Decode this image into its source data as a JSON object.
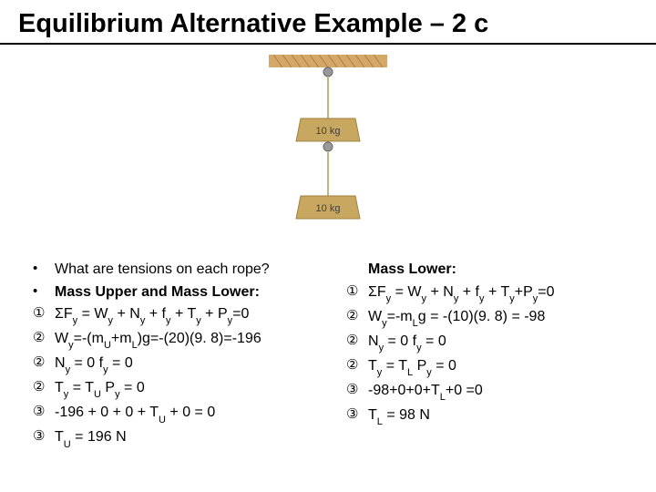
{
  "title": "Equilibrium Alternative Example – 2 c",
  "diagram": {
    "ceiling_color": "#d4a868",
    "ceiling_hatch_color": "#b08040",
    "rope_color": "#c0c090",
    "mass_color": "#c0a060",
    "mass_label": "10 kg",
    "pulley_color": "#888",
    "background": "#ffffff"
  },
  "left_column": [
    {
      "bullet": "•",
      "text": "What are tensions on each rope?",
      "bold": false
    },
    {
      "bullet": "•",
      "text": "Mass Upper and Mass Lower:",
      "bold": true
    },
    {
      "bullet": "①",
      "text": "ΣF_y = W_y + N_y + f_y + T_y + P_y=0",
      "bold": false
    },
    {
      "bullet": "②",
      "text": "W_y=-(m_U+m_L)g=-(20)(9. 8)=-196",
      "bold": false
    },
    {
      "bullet": "②",
      "text": "N_y = 0          f_y = 0",
      "bold": false
    },
    {
      "bullet": "②",
      "text": "T_y = T_U           P_y = 0",
      "bold": false
    },
    {
      "bullet": "③",
      "text": "-196 + 0 + 0 + T_U + 0 = 0",
      "bold": false
    },
    {
      "bullet": "③",
      "text": "T_U = 196 N",
      "bold": false
    }
  ],
  "right_column": [
    {
      "bullet": "",
      "text": "Mass Lower:",
      "bold": true
    },
    {
      "bullet": "①",
      "text": "ΣF_y = W_y + N_y + f_y + T_y+P_y=0",
      "bold": false,
      "wrap": true
    },
    {
      "bullet": "②",
      "text": "W_y=-m_Lg = -(10)(9. 8) = -98",
      "bold": false
    },
    {
      "bullet": "②",
      "text": "N_y = 0             f_y = 0",
      "bold": false
    },
    {
      "bullet": "②",
      "text": "T_y = T_L             P_y = 0",
      "bold": false
    },
    {
      "bullet": "③",
      "text": "-98+0+0+T_L+0 =0",
      "bold": false
    },
    {
      "bullet": "③",
      "text": "T_L = 98 N",
      "bold": false
    }
  ]
}
